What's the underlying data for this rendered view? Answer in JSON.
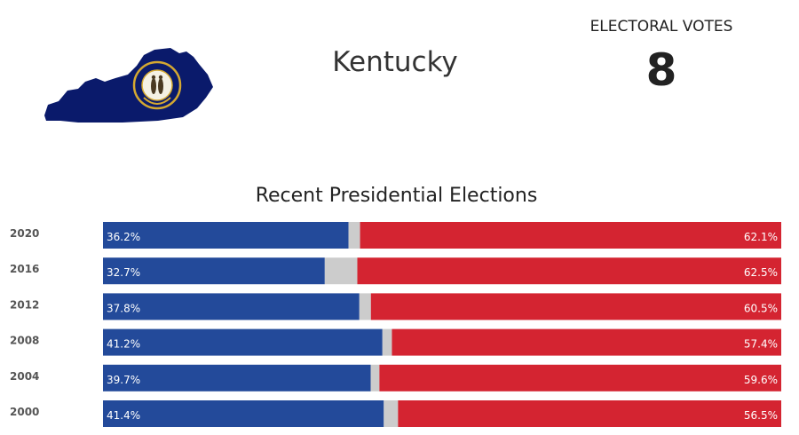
{
  "header": {
    "state_name": "Kentucky",
    "electoral_votes_label": "ELECTORAL VOTES",
    "electoral_votes": "8"
  },
  "seal": {
    "inscription": "COMMONWEALTH OF KENTUCKY",
    "motto": "UNITED WE STAND"
  },
  "colors": {
    "democrat": "#234a9a",
    "republican": "#d42431",
    "other": "#cccccc",
    "state_fill": "#0a1a6b",
    "seal_gold": "#d4a831"
  },
  "chart_data": {
    "type": "bar",
    "stacked": true,
    "orientation": "horizontal",
    "title": "Recent Presidential Elections",
    "categories": [
      "2020",
      "2016",
      "2012",
      "2008",
      "2004",
      "2000"
    ],
    "series": [
      {
        "key": "dem",
        "values": [
          36.2,
          32.7,
          37.8,
          41.2,
          39.7,
          41.4
        ],
        "labels": [
          "36.2%",
          "32.7%",
          "37.8%",
          "41.2%",
          "39.7%",
          "41.4%"
        ]
      },
      {
        "key": "other",
        "values": [
          1.7,
          4.8,
          1.7,
          1.4,
          1.3,
          2.1
        ]
      },
      {
        "key": "rep",
        "values": [
          62.1,
          62.5,
          60.5,
          57.4,
          59.6,
          56.5
        ],
        "labels": [
          "62.1%",
          "62.5%",
          "60.5%",
          "57.4%",
          "59.6%",
          "56.5%"
        ]
      }
    ]
  }
}
